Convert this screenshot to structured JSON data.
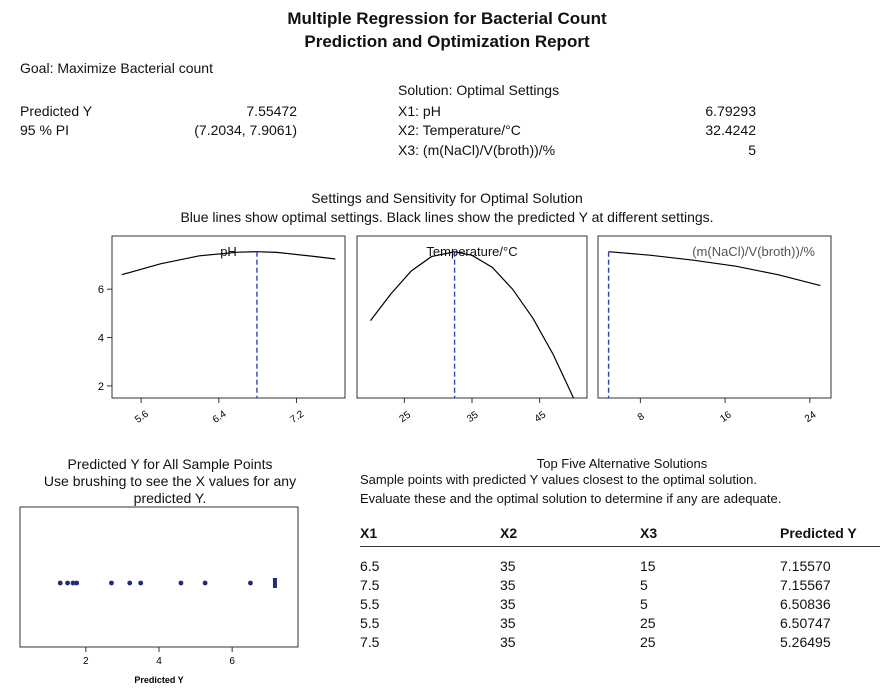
{
  "report": {
    "title_line1": "Multiple Regression for Bacterial Count",
    "title_line2": "Prediction and Optimization Report",
    "goal": "Goal: Maximize Bacterial count",
    "predicted_label": "Predicted Y",
    "predicted_value": "7.55472",
    "pi_label": "95 % PI",
    "pi_value": "(7.2034, 7.9061)",
    "solution_header": "Solution: Optimal Settings",
    "settings": [
      {
        "label": "X1: pH",
        "value": "6.79293"
      },
      {
        "label": "X2: Temperature/°C",
        "value": "32.4242"
      },
      {
        "label": "X3: (m(NaCl)/V(broth))/%",
        "value": "5"
      }
    ]
  },
  "sensitivity": {
    "heading": "Settings and Sensitivity for Optimal Solution",
    "subheading": "Blue lines show optimal settings. Black lines show the predicted Y at different settings.",
    "line_color": "#000000",
    "optimal_color": "#3344aa"
  },
  "scatter_section": {
    "heading": "Predicted Y for All Sample Points",
    "subheading_line1": "Use brushing to see the X values for any",
    "subheading_line2": "predicted Y.",
    "point_color": "#1f2a7a"
  },
  "alternatives": {
    "heading": "Top Five Alternative Solutions",
    "subheading_line1": "Sample points with predicted Y values closest to the optimal solution.",
    "subheading_line2": "Evaluate these and the optimal solution to determine if any are adequate.",
    "columns": [
      "X1",
      "X2",
      "X3",
      "Predicted Y"
    ],
    "rows": [
      [
        "6.5",
        "35",
        "15",
        "7.15570"
      ],
      [
        "7.5",
        "35",
        "5",
        "7.15567"
      ],
      [
        "5.5",
        "35",
        "5",
        "6.50836"
      ],
      [
        "5.5",
        "35",
        "25",
        "6.50747"
      ],
      [
        "7.5",
        "35",
        "25",
        "5.26495"
      ]
    ]
  },
  "chart_data": [
    {
      "type": "line",
      "title": "pH",
      "x": [
        5.4,
        5.8,
        6.2,
        6.6,
        6.79,
        7.0,
        7.4,
        7.6
      ],
      "y": [
        6.6,
        7.05,
        7.38,
        7.53,
        7.55,
        7.52,
        7.35,
        7.25
      ],
      "optimal_x": 6.79293,
      "xlim": [
        5.3,
        7.7
      ],
      "ylim": [
        1.5,
        8.2
      ],
      "xticks": [
        "5.6",
        "6.4",
        "7.2"
      ],
      "xtick_values": [
        5.6,
        6.4,
        7.2
      ],
      "yticks": [
        "2",
        "4",
        "6"
      ],
      "ytick_values": [
        2,
        4,
        6
      ]
    },
    {
      "type": "line",
      "title": "Temperature/°C",
      "x": [
        20,
        23,
        26,
        29,
        32.42,
        35,
        38,
        41,
        44,
        47,
        50
      ],
      "y": [
        4.7,
        5.8,
        6.75,
        7.35,
        7.55,
        7.4,
        6.9,
        6.0,
        4.8,
        3.3,
        1.5
      ],
      "optimal_x": 32.4242,
      "xlim": [
        18,
        52
      ],
      "ylim": [
        1.5,
        8.2
      ],
      "xticks": [
        "25",
        "35",
        "45"
      ],
      "xtick_values": [
        25,
        35,
        45
      ],
      "yticks": [],
      "ytick_values": []
    },
    {
      "type": "line",
      "title": "(m(NaCl)/V(broth))/%",
      "x": [
        5,
        9,
        13,
        17,
        21,
        25
      ],
      "y": [
        7.55,
        7.4,
        7.2,
        6.95,
        6.6,
        6.15
      ],
      "optimal_x": 5,
      "xlim": [
        4,
        26
      ],
      "ylim": [
        1.5,
        8.2
      ],
      "xticks": [
        "8",
        "16",
        "24"
      ],
      "xtick_values": [
        8,
        16,
        24
      ],
      "yticks": [],
      "ytick_values": []
    },
    {
      "type": "scatter",
      "xlabel": "Predicted Y",
      "x": [
        1.3,
        1.5,
        1.65,
        1.75,
        2.7,
        3.2,
        3.5,
        4.6,
        5.26,
        6.5,
        7.1557,
        7.1557
      ],
      "xlim": [
        0.2,
        7.8
      ],
      "xticks": [
        "2",
        "4",
        "6"
      ],
      "xtick_values": [
        2,
        4,
        6
      ]
    }
  ]
}
